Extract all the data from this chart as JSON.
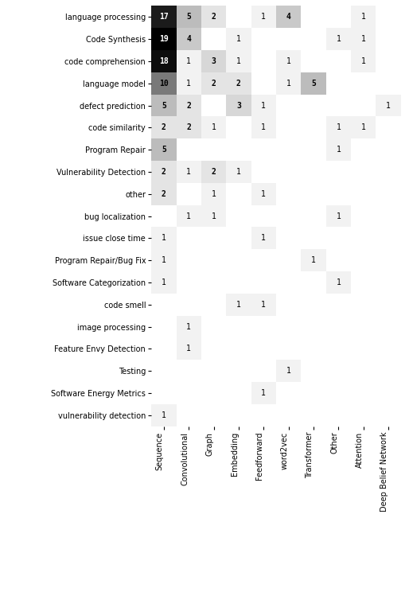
{
  "rows": [
    "language processing",
    "Code Synthesis",
    "code comprehension",
    "language model",
    "defect prediction",
    "code similarity",
    "Program Repair",
    "Vulnerability Detection",
    "other",
    "bug localization",
    "issue close time",
    "Program Repair/Bug Fix",
    "Software Categorization",
    "code smell",
    "image processing",
    "Feature Envy Detection",
    "Testing",
    "Software Energy Metrics",
    "vulnerability detection"
  ],
  "cols": [
    "Sequence",
    "Convolutional",
    "Graph",
    "Embedding",
    "Feedforward",
    "word2vec",
    "Transformer",
    "Other",
    "Attention",
    "Deep Belief Network"
  ],
  "data": [
    [
      17,
      5,
      2,
      0,
      1,
      4,
      0,
      0,
      1,
      0
    ],
    [
      19,
      4,
      0,
      1,
      0,
      0,
      0,
      1,
      1,
      0
    ],
    [
      18,
      1,
      3,
      1,
      0,
      1,
      0,
      0,
      1,
      0
    ],
    [
      10,
      1,
      2,
      2,
      0,
      1,
      5,
      0,
      0,
      0
    ],
    [
      5,
      2,
      0,
      3,
      1,
      0,
      0,
      0,
      0,
      1
    ],
    [
      2,
      2,
      1,
      0,
      1,
      0,
      0,
      1,
      1,
      0
    ],
    [
      5,
      0,
      0,
      0,
      0,
      0,
      0,
      1,
      0,
      0
    ],
    [
      2,
      1,
      2,
      1,
      0,
      0,
      0,
      0,
      0,
      0
    ],
    [
      2,
      0,
      1,
      0,
      1,
      0,
      0,
      0,
      0,
      0
    ],
    [
      0,
      1,
      1,
      0,
      0,
      0,
      0,
      1,
      0,
      0
    ],
    [
      1,
      0,
      0,
      0,
      1,
      0,
      0,
      0,
      0,
      0
    ],
    [
      1,
      0,
      0,
      0,
      0,
      0,
      1,
      0,
      0,
      0
    ],
    [
      1,
      0,
      0,
      0,
      0,
      0,
      0,
      1,
      0,
      0
    ],
    [
      0,
      0,
      0,
      1,
      1,
      0,
      0,
      0,
      0,
      0
    ],
    [
      0,
      1,
      0,
      0,
      0,
      0,
      0,
      0,
      0,
      0
    ],
    [
      0,
      1,
      0,
      0,
      0,
      0,
      0,
      0,
      0,
      0
    ],
    [
      0,
      0,
      0,
      0,
      0,
      1,
      0,
      0,
      0,
      0
    ],
    [
      0,
      0,
      0,
      0,
      1,
      0,
      0,
      0,
      0,
      0
    ],
    [
      1,
      0,
      0,
      0,
      0,
      0,
      0,
      0,
      0,
      0
    ]
  ],
  "background_color": "#ffffff",
  "fontsize_cell": 7,
  "fontsize_row": 7,
  "fontsize_col": 7
}
